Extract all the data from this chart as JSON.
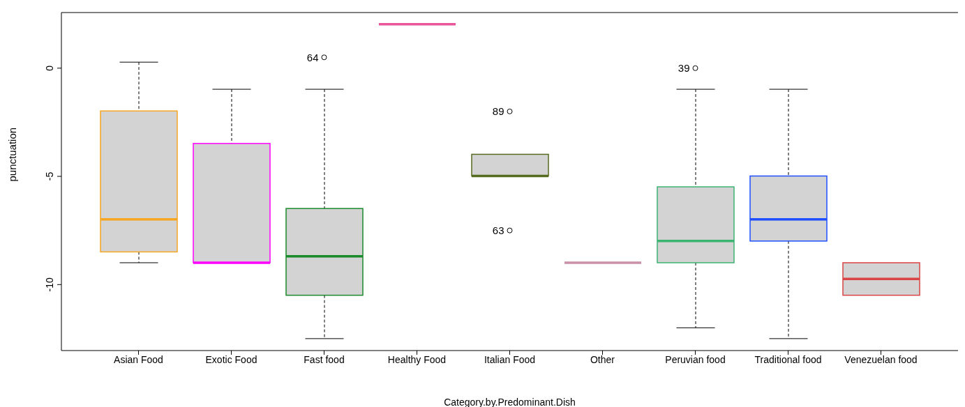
{
  "chart_data": {
    "type": "box",
    "xlabel": "Category.by.Predominant.Dish",
    "ylabel": "punctuation",
    "categories": [
      "Asian Food",
      "Exotic Food",
      "Fast food",
      "Healthy Food",
      "Italian Food",
      "Other",
      "Peruvian food",
      "Traditional food",
      "Venezuelan food"
    ],
    "colors": [
      "#f5a623",
      "#ff00ff",
      "#1a8a2a",
      "#e9579a",
      "#556b1f",
      "#c990a8",
      "#3cb371",
      "#1f4fff",
      "#d94444"
    ],
    "boxes": [
      {
        "low": -9,
        "q1": -8.5,
        "median": -7,
        "q3": -2,
        "high": 0.25
      },
      {
        "low": -9,
        "q1": -9,
        "median": -9,
        "q3": -3.5,
        "high": -1
      },
      {
        "low": -12.5,
        "q1": -10.5,
        "median": -8.7,
        "q3": -6.5,
        "high": -1,
        "outliers": [
          0.5
        ]
      },
      {
        "low": 2,
        "q1": 2,
        "median": 2,
        "q3": 2,
        "high": 2
      },
      {
        "low": -5,
        "q1": -5,
        "median": -5,
        "q3": -4,
        "high": -4,
        "outliers": [
          -2,
          -7.5
        ]
      },
      {
        "low": -9,
        "q1": -9,
        "median": -9,
        "q3": -9,
        "high": -9
      },
      {
        "low": -12,
        "q1": -9,
        "median": -8,
        "q3": -5.5,
        "high": -1,
        "outliers": [
          0
        ]
      },
      {
        "low": -12.5,
        "q1": -8,
        "median": -7,
        "q3": -5,
        "high": -1
      },
      {
        "low": -10.5,
        "q1": -10.5,
        "median": -9.75,
        "q3": -9,
        "high": -9
      }
    ],
    "annotations": [
      "64",
      "89",
      "63",
      "39"
    ],
    "ylim": [
      -13.05,
      2.57
    ],
    "yticks": [
      -10,
      -5,
      0
    ]
  }
}
